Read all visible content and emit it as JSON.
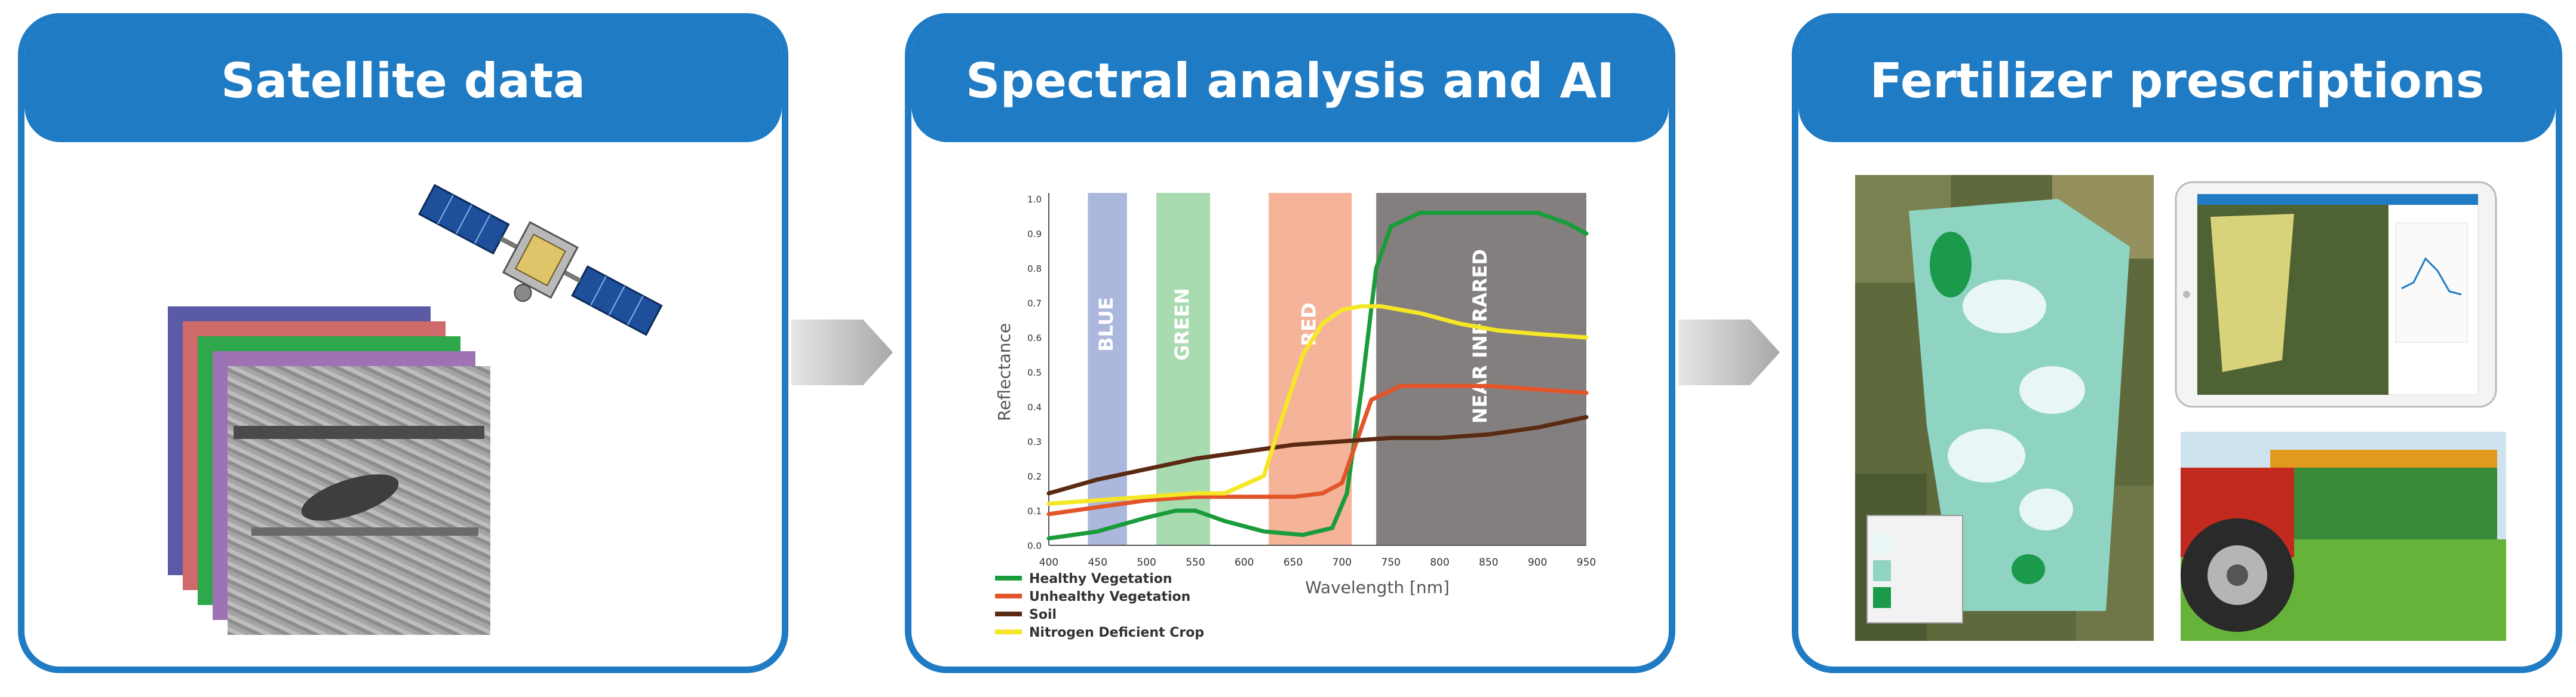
{
  "panels": [
    {
      "title": "Satellite data"
    },
    {
      "title": "Spectral analysis and AI"
    },
    {
      "title": "Fertilizer prescriptions"
    }
  ],
  "chart_data": {
    "type": "line",
    "title": "",
    "xlabel": "Wavelength [nm]",
    "ylabel": "Reflectance",
    "xlim": [
      400,
      950
    ],
    "ylim": [
      0,
      1.0
    ],
    "x_ticks": [
      400,
      450,
      500,
      550,
      600,
      650,
      700,
      750,
      800,
      850,
      900,
      950
    ],
    "y_ticks": [
      0.0,
      0.1,
      0.2,
      0.3,
      0.4,
      0.5,
      0.6,
      0.7,
      0.8,
      0.9,
      1.0
    ],
    "bands": [
      {
        "name": "BLUE",
        "x": [
          440,
          480
        ],
        "color": "#8f9fd0"
      },
      {
        "name": "GREEN",
        "x": [
          510,
          565
        ],
        "color": "#8ccf96"
      },
      {
        "name": "RED",
        "x": [
          625,
          710
        ],
        "color": "#f29a78"
      },
      {
        "name": "NEAR INFRARED",
        "x": [
          735,
          950
        ],
        "color": "#6d6868"
      }
    ],
    "series": [
      {
        "name": "Healthy Vegetation",
        "color": "#1a9c3b",
        "x": [
          400,
          450,
          500,
          530,
          550,
          580,
          620,
          660,
          690,
          705,
          720,
          735,
          750,
          780,
          820,
          860,
          900,
          930,
          950
        ],
        "y": [
          0.02,
          0.04,
          0.08,
          0.1,
          0.1,
          0.07,
          0.04,
          0.03,
          0.05,
          0.15,
          0.45,
          0.8,
          0.92,
          0.96,
          0.96,
          0.96,
          0.96,
          0.93,
          0.9
        ]
      },
      {
        "name": "Unhealthy Vegetation",
        "color": "#e2552a",
        "x": [
          400,
          450,
          500,
          550,
          600,
          650,
          680,
          700,
          715,
          730,
          760,
          800,
          850,
          900,
          950
        ],
        "y": [
          0.09,
          0.11,
          0.13,
          0.14,
          0.14,
          0.14,
          0.15,
          0.18,
          0.3,
          0.42,
          0.46,
          0.46,
          0.46,
          0.45,
          0.44
        ]
      },
      {
        "name": "Soil",
        "color": "#5a2a12",
        "x": [
          400,
          450,
          500,
          550,
          600,
          650,
          700,
          750,
          800,
          850,
          900,
          950
        ],
        "y": [
          0.15,
          0.19,
          0.22,
          0.25,
          0.27,
          0.29,
          0.3,
          0.31,
          0.31,
          0.32,
          0.34,
          0.37
        ]
      },
      {
        "name": "Nitrogen Deficient Crop",
        "color": "#f5e626",
        "x": [
          400,
          450,
          500,
          550,
          580,
          620,
          640,
          660,
          680,
          700,
          720,
          740,
          780,
          820,
          860,
          900,
          950
        ],
        "y": [
          0.12,
          0.13,
          0.14,
          0.15,
          0.15,
          0.2,
          0.38,
          0.55,
          0.64,
          0.68,
          0.69,
          0.69,
          0.67,
          0.64,
          0.62,
          0.61,
          0.6
        ]
      }
    ]
  }
}
